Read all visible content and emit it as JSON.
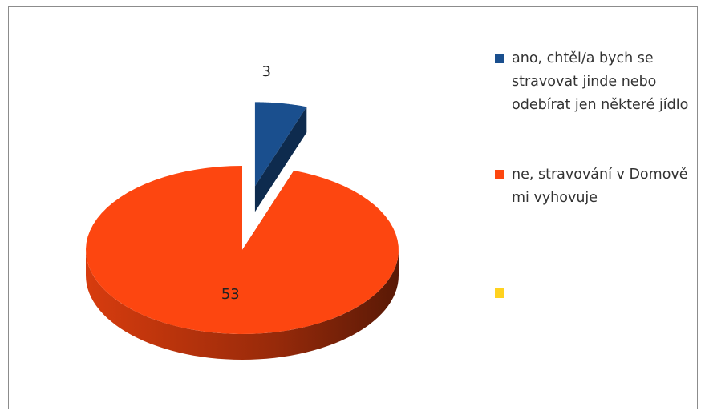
{
  "chart_data": {
    "type": "pie",
    "categories": [
      "ano, chtěl/a bych se stravovat jinde nebo odebírat jen některé jídlo",
      "ne, stravování v Domově mi vyhovuje",
      null
    ],
    "values": [
      3,
      53,
      0
    ],
    "colors": [
      "#1a4f8e",
      "#fd4610",
      "#ffd21f"
    ],
    "legend": "right"
  }
}
